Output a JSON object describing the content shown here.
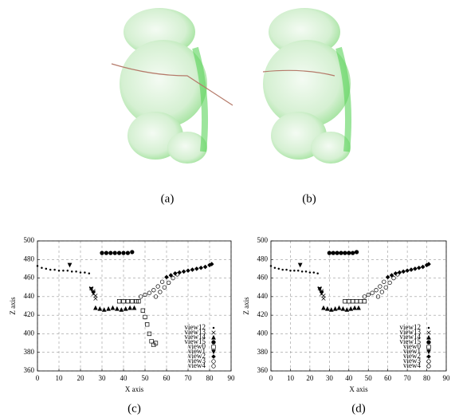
{
  "images": [
    {
      "caption": "(a)"
    },
    {
      "caption": "(b)"
    }
  ],
  "chart_data": [
    {
      "type": "scatter",
      "caption": "(c)",
      "xlabel": "X axis",
      "ylabel": "Z axis",
      "xlim": [
        0,
        90
      ],
      "xticks": [
        0,
        10,
        20,
        30,
        40,
        50,
        60,
        70,
        80,
        90
      ],
      "ylim": [
        360,
        500
      ],
      "yticks": [
        360,
        380,
        400,
        420,
        440,
        460,
        480,
        500
      ],
      "grid": true,
      "legend": "lower right",
      "series": [
        {
          "name": "view12",
          "marker": "dot",
          "color": "#000",
          "x": [
            0,
            2,
            4,
            6,
            8,
            10,
            12,
            14,
            16,
            18,
            20,
            22,
            24
          ],
          "values": [
            473,
            471,
            470,
            469,
            469,
            468,
            468,
            468,
            467,
            467,
            466,
            466,
            465
          ]
        },
        {
          "name": "view13",
          "marker": "cross",
          "color": "#000",
          "x": [
            25,
            26,
            26,
            27,
            27
          ],
          "values": [
            449,
            446,
            443,
            441,
            438
          ]
        },
        {
          "name": "view14",
          "marker": "triangle",
          "color": "#000",
          "x": [
            27,
            29,
            31,
            33,
            35,
            37,
            39,
            41,
            43,
            45
          ],
          "values": [
            428,
            427,
            426,
            427,
            428,
            427,
            426,
            427,
            428,
            428
          ]
        },
        {
          "name": "view15",
          "marker": "circle",
          "color": "#000",
          "x": [
            30,
            32,
            34,
            36,
            38,
            40,
            42,
            44
          ],
          "values": [
            487,
            487,
            487,
            487,
            487,
            487,
            487,
            488
          ]
        },
        {
          "name": "view0",
          "marker": "square",
          "color": "#000",
          "x": [
            38,
            40,
            42,
            44,
            46,
            47,
            49,
            50,
            51,
            52,
            53,
            54,
            55
          ],
          "values": [
            435,
            435,
            435,
            435,
            435,
            435,
            425,
            418,
            410,
            400,
            392,
            388,
            390
          ]
        },
        {
          "name": "view1",
          "marker": "triangle-down",
          "color": "#000",
          "x": [
            15,
            25,
            26
          ],
          "values": [
            474,
            448,
            444
          ]
        },
        {
          "name": "view2",
          "marker": "diamond",
          "color": "#000",
          "x": [
            60,
            62,
            64,
            66,
            68,
            70,
            72,
            74,
            76,
            78,
            80,
            81
          ],
          "values": [
            461,
            463,
            465,
            466,
            467,
            468,
            469,
            470,
            471,
            472,
            474,
            475
          ]
        },
        {
          "name": "view3",
          "marker": "open-circle",
          "color": "#000",
          "x": [
            48,
            50,
            52,
            54,
            56,
            58
          ],
          "values": [
            440,
            442,
            444,
            447,
            451,
            456
          ]
        },
        {
          "name": "view4",
          "marker": "open-circle",
          "color": "#000",
          "x": [
            55,
            57,
            59,
            61,
            63,
            65
          ],
          "values": [
            440,
            445,
            450,
            455,
            460,
            464
          ]
        }
      ]
    },
    {
      "type": "scatter",
      "caption": "(d)",
      "xlabel": "X axis",
      "ylabel": "Z axis",
      "xlim": [
        0,
        90
      ],
      "xticks": [
        0,
        10,
        20,
        30,
        40,
        50,
        60,
        70,
        80,
        90
      ],
      "ylim": [
        360,
        500
      ],
      "yticks": [
        360,
        380,
        400,
        420,
        440,
        460,
        480,
        500
      ],
      "grid": true,
      "legend": "lower right",
      "series": [
        {
          "name": "view12",
          "marker": "dot",
          "color": "#000",
          "x": [
            0,
            2,
            4,
            6,
            8,
            10,
            12,
            14,
            16,
            18,
            20,
            22,
            24
          ],
          "values": [
            473,
            471,
            470,
            469,
            469,
            468,
            468,
            468,
            467,
            467,
            466,
            466,
            465
          ]
        },
        {
          "name": "view13",
          "marker": "cross",
          "color": "#000",
          "x": [
            25,
            26,
            26,
            27,
            27
          ],
          "values": [
            449,
            446,
            443,
            441,
            438
          ]
        },
        {
          "name": "view14",
          "marker": "triangle",
          "color": "#000",
          "x": [
            27,
            29,
            31,
            33,
            35,
            37,
            39,
            41,
            43,
            45
          ],
          "values": [
            428,
            427,
            426,
            427,
            428,
            427,
            426,
            427,
            428,
            428
          ]
        },
        {
          "name": "view15",
          "marker": "circle",
          "color": "#000",
          "x": [
            30,
            32,
            34,
            36,
            38,
            40,
            42,
            44
          ],
          "values": [
            487,
            487,
            487,
            487,
            487,
            487,
            487,
            488
          ]
        },
        {
          "name": "view0",
          "marker": "square",
          "color": "#000",
          "x": [
            38,
            40,
            42,
            44,
            46,
            48
          ],
          "values": [
            435,
            435,
            435,
            435,
            435,
            435
          ]
        },
        {
          "name": "view1",
          "marker": "triangle-down",
          "color": "#000",
          "x": [
            15,
            25,
            26
          ],
          "values": [
            474,
            448,
            444
          ]
        },
        {
          "name": "view2",
          "marker": "diamond",
          "color": "#000",
          "x": [
            60,
            62,
            64,
            66,
            68,
            70,
            72,
            74,
            76,
            78,
            80,
            81
          ],
          "values": [
            461,
            463,
            465,
            466,
            467,
            468,
            469,
            470,
            471,
            472,
            474,
            475
          ]
        },
        {
          "name": "view3",
          "marker": "open-circle",
          "color": "#000",
          "x": [
            48,
            50,
            52,
            54,
            56,
            58
          ],
          "values": [
            440,
            442,
            444,
            447,
            451,
            456
          ]
        },
        {
          "name": "view4",
          "marker": "open-circle",
          "color": "#000",
          "x": [
            55,
            57,
            59,
            61,
            63,
            65
          ],
          "values": [
            440,
            445,
            450,
            455,
            460,
            464
          ]
        }
      ]
    }
  ]
}
